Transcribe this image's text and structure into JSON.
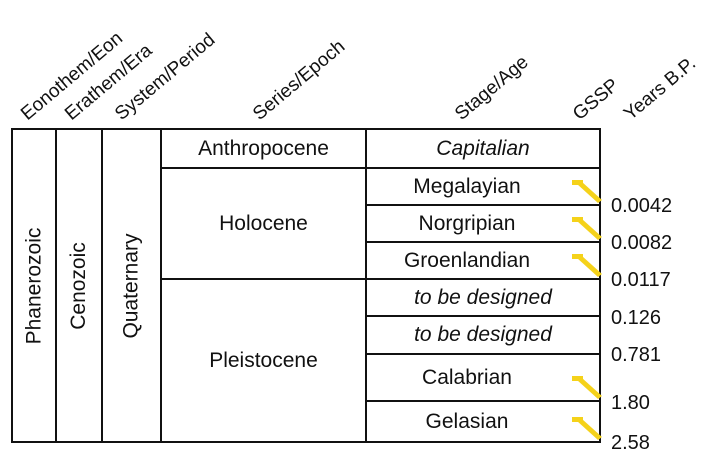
{
  "headers": {
    "eonothem": "Eonothem/Eon",
    "erathem": "Erathem/Era",
    "system": "System/Period",
    "series": "Series/Epoch",
    "stage": "Stage/Age",
    "gssp": "GSSP",
    "years": "Years B.P."
  },
  "eon": "Phanerozoic",
  "era": "Cenozoic",
  "period": "Quaternary",
  "series": {
    "anthropocene": "Anthropocene",
    "holocene": "Holocene",
    "pleistocene": "Pleistocene"
  },
  "stages": {
    "capitalian": "Capitalian",
    "megalayian": "Megalayian",
    "norgripian": "Norgripian",
    "groenlandian": "Groenlandian",
    "tbd1": "to be designed",
    "tbd2": "to be designed",
    "calabrian": "Calabrian",
    "gelasian": "Gelasian"
  },
  "years": [
    "0.0042",
    "0.0082",
    "0.0117",
    "0.126",
    "0.781",
    "1.80",
    "2.58"
  ],
  "gssp_icon": "golden-spike-icon",
  "colors": {
    "gssp_spike": "#f5d21a"
  }
}
